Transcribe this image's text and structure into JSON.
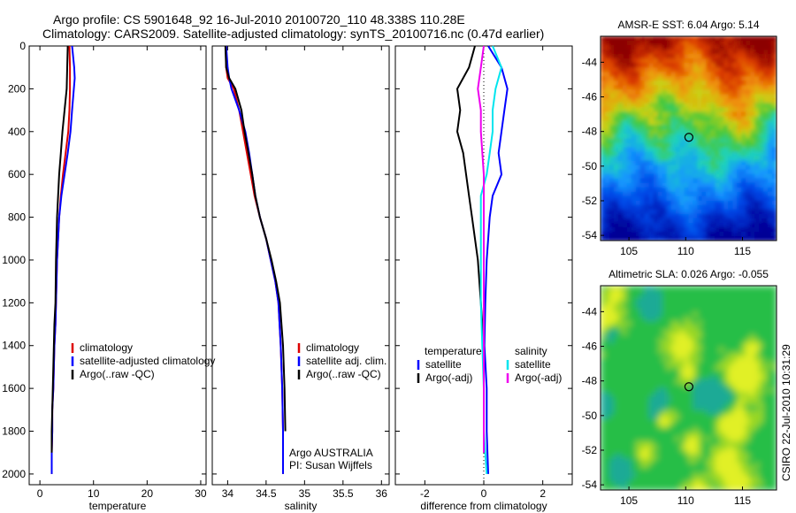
{
  "title": {
    "line1": "Argo profile: CS 5901648_92 16-Jul-2010 20100720_110 48.338S 110.28E",
    "line2": "Climatology: CARS2009. Satellite-adjusted climatology: synTS_20100716.nc (0.47d earlier)"
  },
  "side_label": "CSIRO 22-Jul-2010 10:31:29",
  "colors": {
    "climatology": "#dd0000",
    "satellite": "#0000ff",
    "argo": "#000000",
    "salinity_satellite": "#00e5ee",
    "salinity_argo": "#ee00ee",
    "marker": "#000000"
  },
  "chart_data": [
    {
      "type": "line",
      "xlabel": "temperature",
      "xlim": [
        -2,
        31
      ],
      "ylim": [
        0,
        2050
      ],
      "y_reversed": true,
      "xticks": [
        0,
        10,
        20,
        30
      ],
      "yticks": [
        0,
        200,
        400,
        600,
        800,
        1000,
        1200,
        1400,
        1600,
        1800,
        2000
      ],
      "legend": [
        "climatology",
        "satellite-adjusted climatology",
        "Argo(..raw -QC)"
      ],
      "series": [
        {
          "name": "climatology",
          "color": "climatology",
          "x": [
            5.5,
            5.6,
            5.6,
            5.5,
            5.3,
            4.8,
            4.3,
            3.9,
            3.6,
            3.2,
            3.0,
            2.9,
            2.7,
            2.6,
            2.5,
            2.3,
            2.3,
            2.2,
            2.2
          ],
          "y": [
            0,
            100,
            200,
            300,
            400,
            500,
            600,
            700,
            800,
            1000,
            1200,
            1300,
            1400,
            1500,
            1600,
            1700,
            1800,
            1900,
            2000
          ]
        },
        {
          "name": "satellite-adjusted climatology",
          "color": "satellite",
          "x": [
            6.0,
            6.4,
            6.5,
            6.0,
            5.7,
            5.2,
            4.6,
            4.0,
            3.6,
            3.2,
            3.0,
            2.9,
            2.7,
            2.6,
            2.5,
            2.3,
            2.3,
            2.2,
            2.2
          ],
          "y": [
            0,
            100,
            150,
            300,
            400,
            500,
            600,
            700,
            800,
            1000,
            1200,
            1300,
            1400,
            1500,
            1600,
            1700,
            1800,
            1900,
            2000
          ]
        },
        {
          "name": "Argo(..raw -QC)",
          "color": "argo",
          "x": [
            5.2,
            5.1,
            5.0,
            4.6,
            4.2,
            3.9,
            3.6,
            3.4,
            3.2,
            3.0,
            2.9,
            2.7,
            2.6,
            2.5,
            2.4,
            2.3,
            2.2,
            2.2
          ],
          "y": [
            0,
            100,
            200,
            300,
            400,
            500,
            600,
            700,
            800,
            1000,
            1200,
            1300,
            1400,
            1500,
            1600,
            1700,
            1800,
            1900
          ]
        }
      ]
    },
    {
      "type": "line",
      "xlabel": "salinity",
      "xlim": [
        33.8,
        36.1
      ],
      "ylim": [
        0,
        2050
      ],
      "y_reversed": true,
      "xticks": [
        34,
        34.5,
        35,
        35.5,
        36
      ],
      "legend": [
        "climatology",
        "satellite adj. clim.",
        "Argo(..raw -QC)"
      ],
      "annotations": [
        "Argo AUSTRALIA",
        "PI: Susan Wijffels"
      ],
      "series": [
        {
          "name": "climatology",
          "color": "climatology",
          "x": [
            33.98,
            33.98,
            34.0,
            34.08,
            34.15,
            34.2,
            34.25,
            34.3,
            34.35,
            34.42,
            34.5,
            34.56,
            34.62,
            34.66,
            34.69,
            34.71,
            34.72,
            34.72
          ],
          "y": [
            0,
            100,
            150,
            200,
            300,
            400,
            500,
            600,
            700,
            800,
            900,
            1000,
            1100,
            1200,
            1400,
            1600,
            1800,
            2000
          ]
        },
        {
          "name": "satellite adj. clim.",
          "color": "satellite",
          "x": [
            33.98,
            34.0,
            34.02,
            34.05,
            34.15,
            34.23,
            34.28,
            34.32,
            34.36,
            34.42,
            34.5,
            34.56,
            34.62,
            34.66,
            34.69,
            34.71,
            34.72,
            34.72
          ],
          "y": [
            0,
            100,
            150,
            200,
            300,
            400,
            500,
            600,
            700,
            800,
            900,
            1000,
            1100,
            1200,
            1400,
            1600,
            1800,
            2000
          ]
        },
        {
          "name": "Argo(..raw -QC)",
          "color": "argo",
          "x": [
            33.97,
            33.98,
            34.02,
            34.1,
            34.18,
            34.22,
            34.27,
            34.32,
            34.36,
            34.42,
            34.5,
            34.57,
            34.63,
            34.68,
            34.72,
            34.74,
            34.75
          ],
          "y": [
            0,
            100,
            150,
            200,
            300,
            400,
            500,
            600,
            700,
            800,
            900,
            1000,
            1100,
            1200,
            1400,
            1600,
            1800
          ]
        }
      ]
    },
    {
      "type": "line",
      "xlabel": "difference from climatology",
      "xlim": [
        -3,
        3
      ],
      "ylim": [
        0,
        2050
      ],
      "y_reversed": true,
      "xticks": [
        -2,
        0,
        2
      ],
      "zero_line": true,
      "legend": {
        "temperature": {
          "header": "temperature",
          "items": [
            "satellite",
            "Argo(-adj)"
          ]
        },
        "salinity": {
          "header": "salinity",
          "items": [
            "satellite",
            "Argo(-adj)"
          ]
        }
      },
      "series": [
        {
          "name": "temperature satellite",
          "color": "satellite",
          "x": [
            0.15,
            0.6,
            0.8,
            0.7,
            0.6,
            0.5,
            0.6,
            0.3,
            0.2,
            0.1,
            0.05,
            0.02,
            0.1,
            0.1,
            0.15
          ],
          "y": [
            0,
            100,
            200,
            300,
            400,
            500,
            600,
            700,
            800,
            1000,
            1200,
            1400,
            1600,
            1800,
            2000
          ]
        },
        {
          "name": "temperature Argo(-adj)",
          "color": "argo",
          "x": [
            -0.3,
            -0.5,
            -0.9,
            -0.8,
            -0.9,
            -0.7,
            -0.6,
            -0.5,
            -0.4,
            -0.2,
            -0.1,
            0.0,
            0.0,
            0.0,
            0.0
          ],
          "y": [
            0,
            100,
            200,
            300,
            400,
            500,
            600,
            700,
            800,
            1000,
            1200,
            1400,
            1600,
            1800,
            1900
          ]
        },
        {
          "name": "salinity satellite",
          "color": "salinity_satellite",
          "x": [
            0.3,
            0.6,
            0.4,
            0.3,
            0.3,
            0.2,
            0.1,
            -0.1,
            -0.1,
            -0.1,
            -0.1,
            -0.05,
            0.0,
            0.0,
            0.1
          ],
          "y": [
            0,
            100,
            200,
            300,
            400,
            500,
            600,
            700,
            800,
            1000,
            1200,
            1400,
            1600,
            1800,
            2000
          ]
        },
        {
          "name": "salinity Argo(-adj)",
          "color": "salinity_argo",
          "x": [
            0.0,
            -0.1,
            -0.2,
            -0.1,
            -0.1,
            0.0,
            0.0,
            0.0,
            0.0,
            0.0,
            0.0,
            0.0,
            0.0
          ],
          "y": [
            0,
            100,
            200,
            300,
            400,
            600,
            800,
            1000,
            1200,
            1400,
            1600,
            1800,
            1900
          ]
        }
      ]
    },
    {
      "type": "heatmap",
      "title": "AMSR-E SST: 6.04 Argo: 5.14",
      "xticks": [
        105,
        110,
        115
      ],
      "yticks": [
        -44,
        -46,
        -48,
        -50,
        -52,
        -54
      ],
      "xlim": [
        102.5,
        118
      ],
      "ylim": [
        -54.3,
        -42.5
      ],
      "marker": {
        "lon": 110.28,
        "lat": -48.338
      }
    },
    {
      "type": "heatmap",
      "title": "Altimetric SLA: 0.026 Argo: -0.055",
      "xticks": [
        105,
        110,
        115
      ],
      "yticks": [
        -44,
        -46,
        -48,
        -50,
        -52,
        -54
      ],
      "xlim": [
        102.5,
        118
      ],
      "ylim": [
        -54.3,
        -42.5
      ],
      "marker": {
        "lon": 110.28,
        "lat": -48.338
      }
    }
  ]
}
